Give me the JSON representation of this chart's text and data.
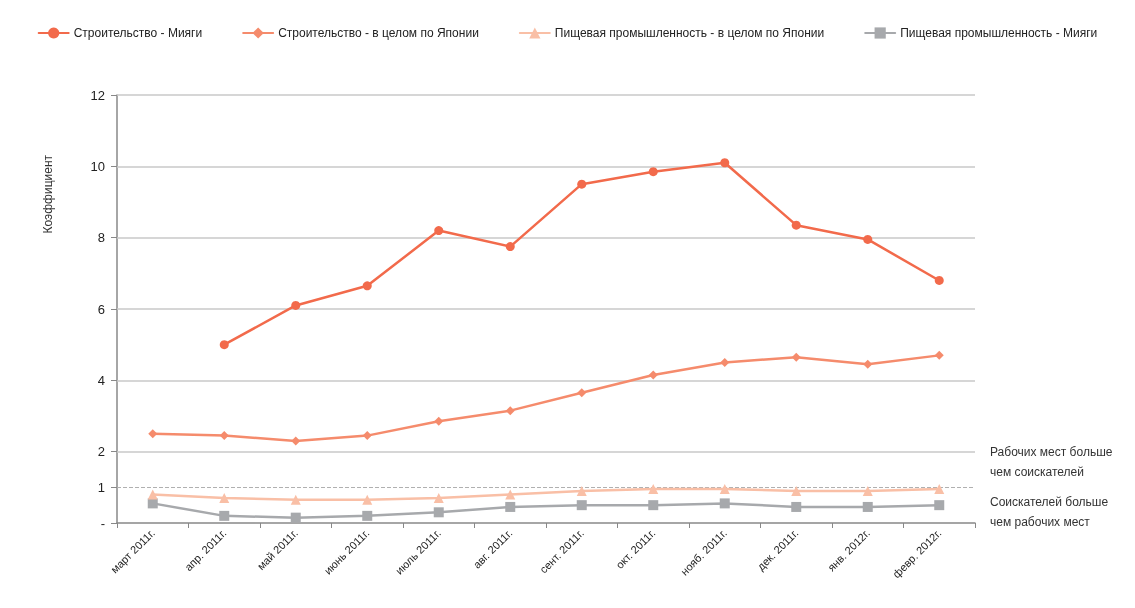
{
  "chart_data": {
    "type": "line",
    "ylabel": "Коэффициент",
    "categories": [
      "март 2011г.",
      "апр. 2011г.",
      "май 2011г.",
      "июнь 2011г.",
      "июль 2011г.",
      "авг. 2011г.",
      "сент. 2011г.",
      "окт. 2011г.",
      "нояб. 2011г.",
      "дек. 2011г.",
      "янв. 2012г.",
      "февр. 2012г."
    ],
    "series": [
      {
        "name": "Строительство - Мияги",
        "color": "#f26a4b",
        "marker": "circle",
        "values": [
          null,
          5.0,
          6.1,
          6.65,
          8.2,
          7.75,
          9.5,
          9.85,
          10.1,
          8.35,
          7.95,
          6.8
        ]
      },
      {
        "name": "Строительство - в целом по Японии",
        "color": "#f58b6c",
        "marker": "diamond",
        "values": [
          2.5,
          2.45,
          2.3,
          2.45,
          2.85,
          3.15,
          3.65,
          4.15,
          4.5,
          4.65,
          4.45,
          4.7
        ]
      },
      {
        "name": "Пищевая промышленность - в целом по Японии",
        "color": "#f9bfa6",
        "marker": "triangle",
        "values": [
          0.8,
          0.7,
          0.65,
          0.65,
          0.7,
          0.8,
          0.9,
          0.95,
          0.95,
          0.9,
          0.9,
          0.95
        ]
      },
      {
        "name": "Пищевая промышленность - Мияги",
        "color": "#a7a9ac",
        "marker": "square",
        "values": [
          0.55,
          0.2,
          0.15,
          0.2,
          0.3,
          0.45,
          0.5,
          0.5,
          0.55,
          0.45,
          0.45,
          0.5
        ]
      }
    ],
    "ylim": [
      0,
      12
    ],
    "yticks": [
      {
        "value": 0,
        "label": "-"
      },
      1,
      2,
      4,
      6,
      8,
      10,
      12
    ],
    "grid": "y",
    "legend": "top",
    "ref_lines": [
      {
        "axis": "y",
        "value": 1,
        "color": "#b0b0b0",
        "line_style": "dashed"
      }
    ],
    "annotations": [
      "Рабочих мест больше чем соискателей",
      "Соискателей больше чем рабочих мест"
    ]
  }
}
